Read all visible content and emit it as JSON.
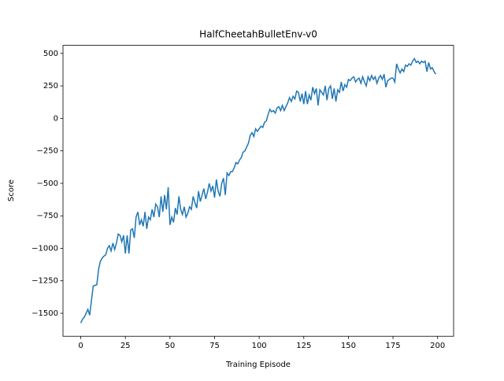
{
  "chart_data": {
    "type": "line",
    "title": "HalfCheetahBulletEnv-v0",
    "xlabel": "Training Episode",
    "ylabel": "Score",
    "x": [
      0,
      1,
      2,
      3,
      4,
      5,
      6,
      7,
      8,
      9,
      10,
      11,
      12,
      13,
      14,
      15,
      16,
      17,
      18,
      19,
      20,
      21,
      22,
      23,
      24,
      25,
      26,
      27,
      28,
      29,
      30,
      31,
      32,
      33,
      34,
      35,
      36,
      37,
      38,
      39,
      40,
      41,
      42,
      43,
      44,
      45,
      46,
      47,
      48,
      49,
      50,
      51,
      52,
      53,
      54,
      55,
      56,
      57,
      58,
      59,
      60,
      61,
      62,
      63,
      64,
      65,
      66,
      67,
      68,
      69,
      70,
      71,
      72,
      73,
      74,
      75,
      76,
      77,
      78,
      79,
      80,
      81,
      82,
      83,
      84,
      85,
      86,
      87,
      88,
      89,
      90,
      91,
      92,
      93,
      94,
      95,
      96,
      97,
      98,
      99,
      100,
      101,
      102,
      103,
      104,
      105,
      106,
      107,
      108,
      109,
      110,
      111,
      112,
      113,
      114,
      115,
      116,
      117,
      118,
      119,
      120,
      121,
      122,
      123,
      124,
      125,
      126,
      127,
      128,
      129,
      130,
      131,
      132,
      133,
      134,
      135,
      136,
      137,
      138,
      139,
      140,
      141,
      142,
      143,
      144,
      145,
      146,
      147,
      148,
      149,
      150,
      151,
      152,
      153,
      154,
      155,
      156,
      157,
      158,
      159,
      160,
      161,
      162,
      163,
      164,
      165,
      166,
      167,
      168,
      169,
      170,
      171,
      172,
      173,
      174,
      175,
      176,
      177,
      178,
      179,
      180,
      181,
      182,
      183,
      184,
      185,
      186,
      187,
      188,
      189,
      190,
      191,
      192,
      193,
      194,
      195,
      196,
      197,
      198,
      199
    ],
    "series": [
      {
        "name": "Score",
        "color": "#1f77b4",
        "values": [
          -1575,
          -1545,
          -1530,
          -1500,
          -1470,
          -1515,
          -1400,
          -1290,
          -1285,
          -1280,
          -1160,
          -1100,
          -1075,
          -1060,
          -1050,
          -1000,
          -980,
          -1020,
          -960,
          -1010,
          -960,
          -890,
          -900,
          -950,
          -900,
          -1040,
          -900,
          -1040,
          -860,
          -850,
          -920,
          -760,
          -720,
          -820,
          -780,
          -830,
          -720,
          -850,
          -760,
          -780,
          -700,
          -760,
          -660,
          -680,
          -760,
          -600,
          -720,
          -590,
          -700,
          -530,
          -820,
          -760,
          -800,
          -690,
          -740,
          -600,
          -700,
          -740,
          -680,
          -760,
          -730,
          -680,
          -700,
          -600,
          -650,
          -690,
          -560,
          -640,
          -590,
          -540,
          -620,
          -570,
          -500,
          -560,
          -520,
          -610,
          -470,
          -560,
          -600,
          -500,
          -460,
          -590,
          -420,
          -440,
          -410,
          -410,
          -380,
          -340,
          -350,
          -320,
          -300,
          -260,
          -250,
          -220,
          -190,
          -130,
          -110,
          -140,
          -80,
          -100,
          -80,
          -60,
          -70,
          -30,
          -20,
          30,
          70,
          50,
          60,
          40,
          80,
          90,
          60,
          100,
          60,
          90,
          120,
          160,
          130,
          170,
          150,
          210,
          200,
          130,
          190,
          110,
          210,
          110,
          180,
          140,
          240,
          190,
          230,
          100,
          220,
          200,
          180,
          250,
          140,
          230,
          250,
          150,
          230,
          130,
          220,
          200,
          280,
          210,
          260,
          240,
          300,
          290,
          310,
          320,
          280,
          300,
          310,
          270,
          320,
          280,
          250,
          320,
          290,
          330,
          300,
          320,
          270,
          310,
          330,
          300,
          340,
          240,
          290,
          300,
          310,
          310,
          280,
          420,
          380,
          350,
          380,
          360,
          410,
          400,
          420,
          410,
          440,
          460,
          430,
          440,
          420,
          440,
          430,
          440,
          360,
          430,
          380,
          390,
          360,
          340
        ]
      }
    ],
    "xlim": [
      -9.95,
      208.95
    ],
    "ylim": [
      -1677,
      562
    ],
    "xticks": [
      0,
      25,
      50,
      75,
      100,
      125,
      150,
      175,
      200
    ],
    "yticks": [
      {
        "value": -1500,
        "label": "−1500"
      },
      {
        "value": -1250,
        "label": "−1250"
      },
      {
        "value": -1000,
        "label": "−1000"
      },
      {
        "value": -750,
        "label": "−750"
      },
      {
        "value": -500,
        "label": "−500"
      },
      {
        "value": -250,
        "label": "−250"
      },
      0,
      250,
      500
    ]
  }
}
